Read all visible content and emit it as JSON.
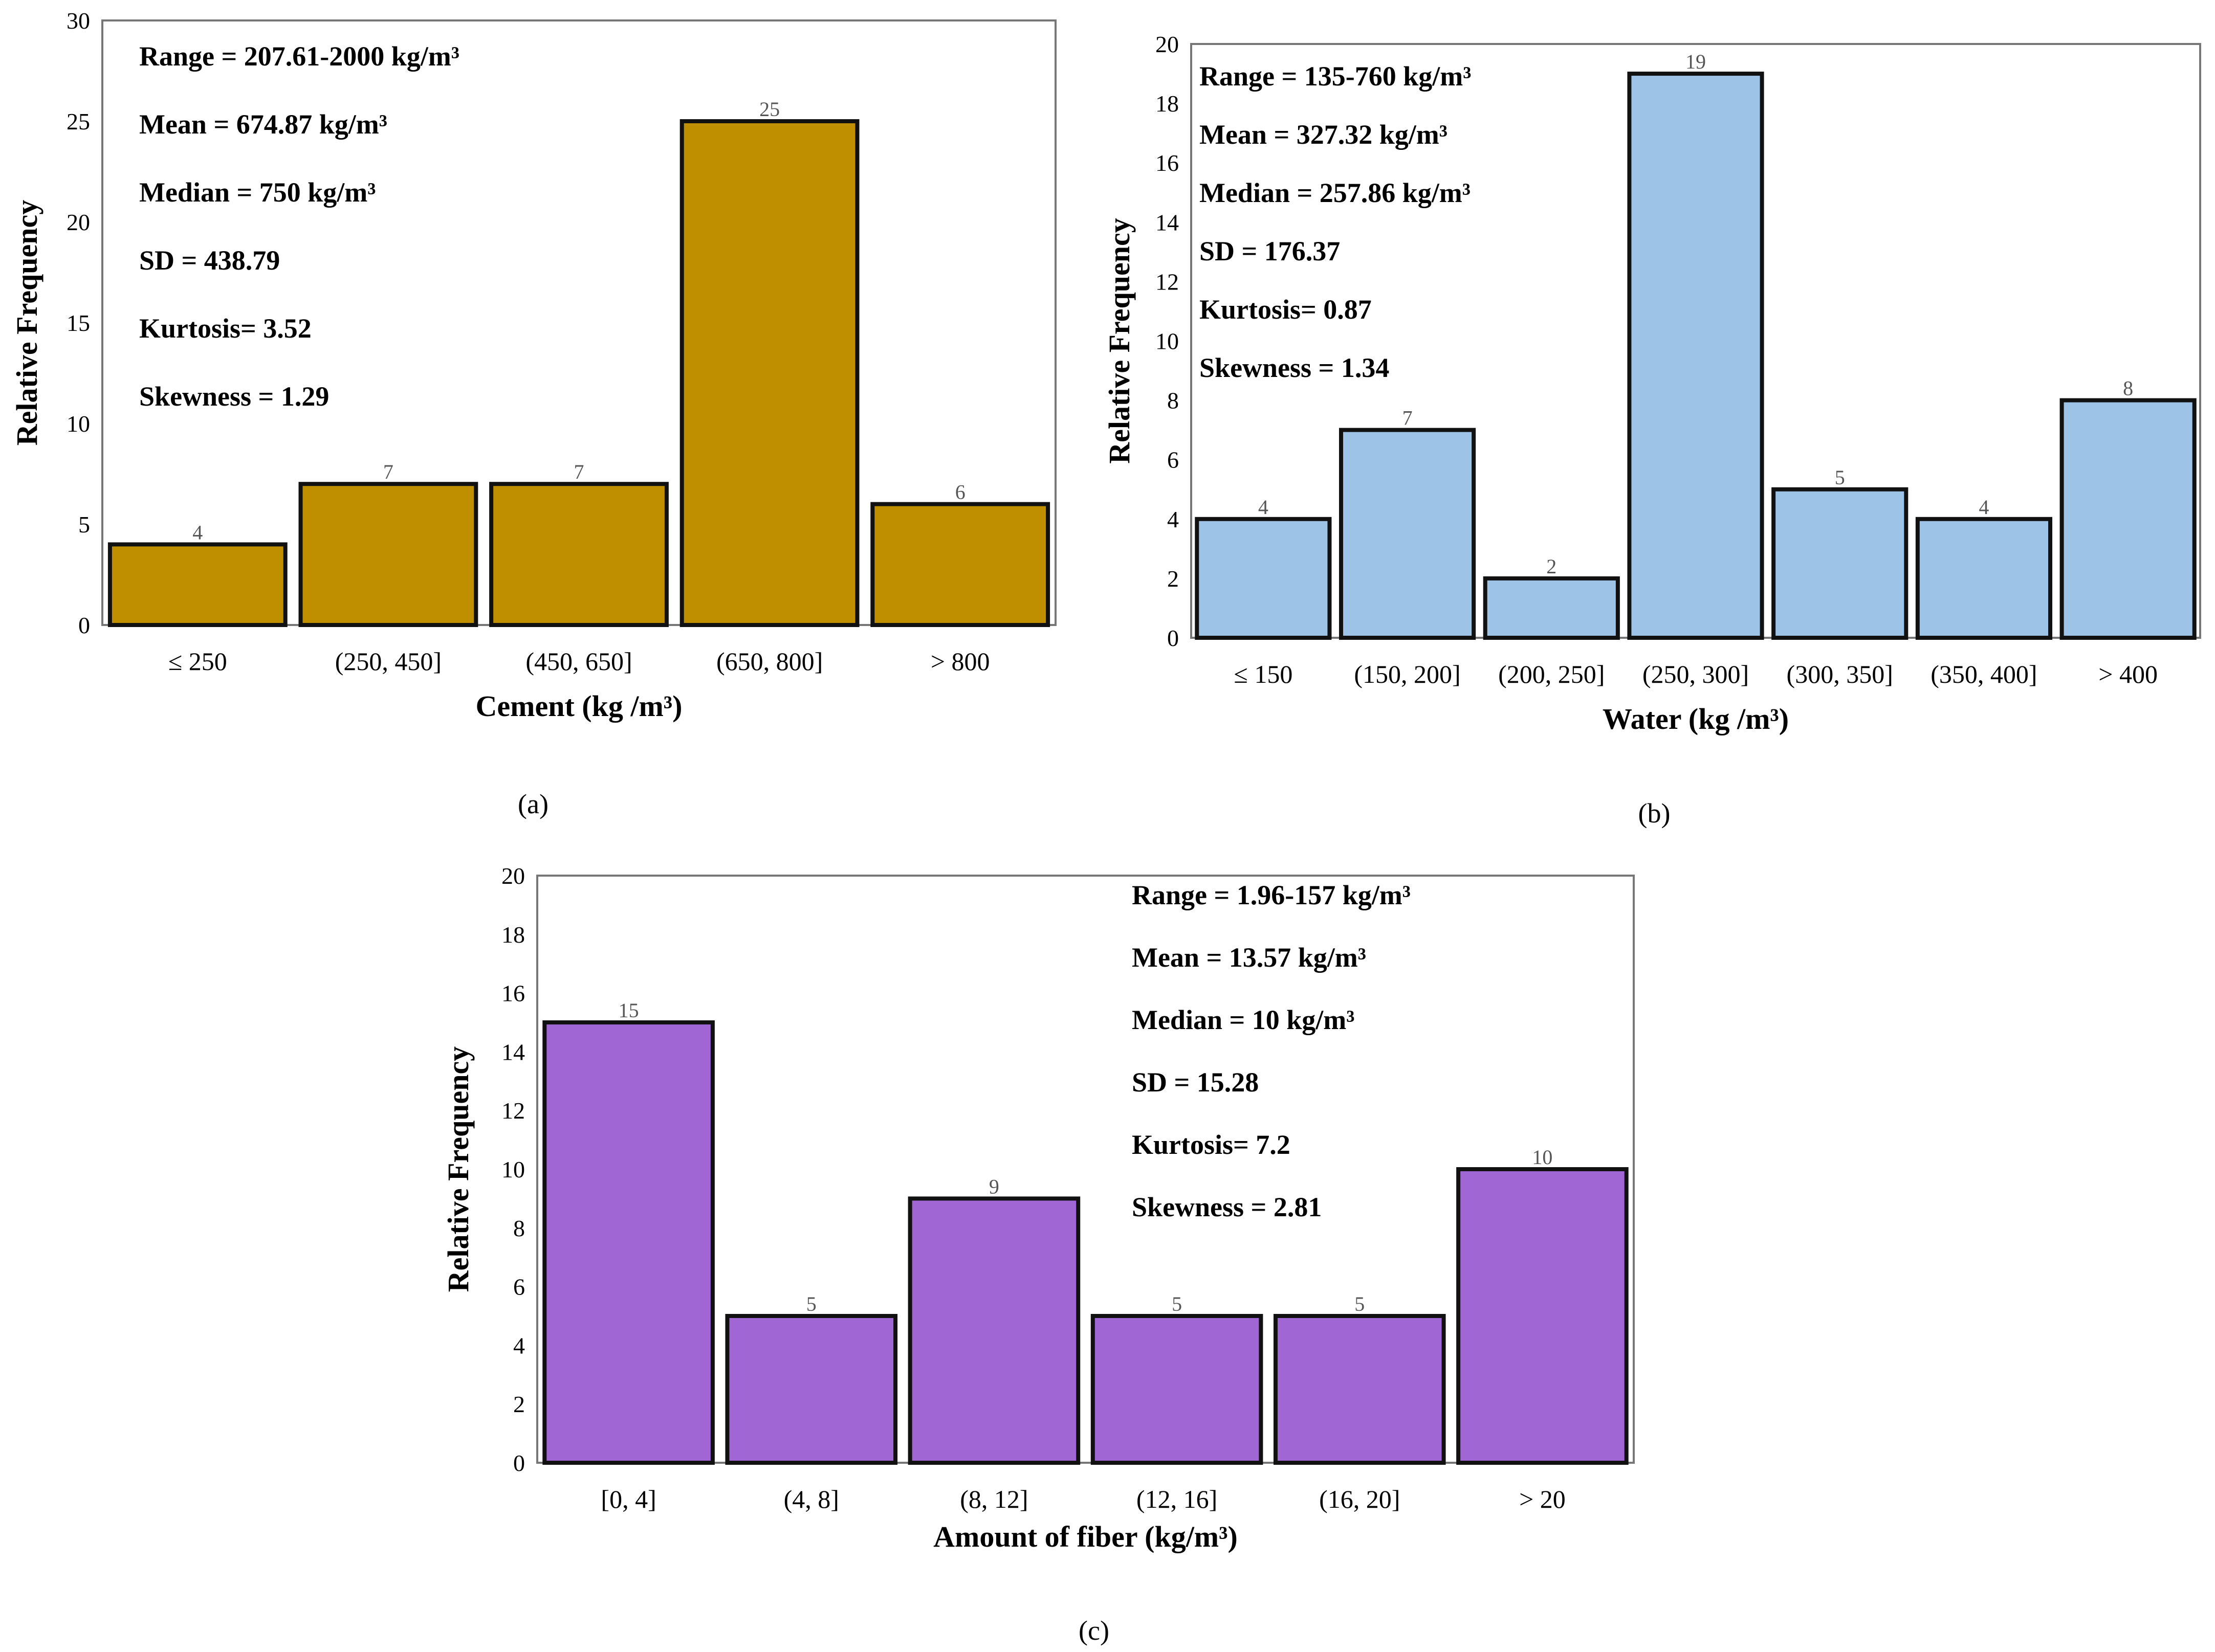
{
  "chart_data": [
    {
      "type": "bar",
      "panel_label": "(a)",
      "color": "#BF8F00",
      "categories": [
        "≤ 250",
        "(250, 450]",
        "(450, 650]",
        "(650, 800]",
        "> 800"
      ],
      "values": [
        4,
        7,
        7,
        25,
        6
      ],
      "xlabel": "Cement (kg /m³)",
      "ylabel": "Relative Frequency",
      "ylim": [
        0,
        30
      ],
      "yticks": [
        0,
        5,
        10,
        15,
        20,
        25,
        30
      ],
      "stats": [
        "Range = 207.61-2000 kg/m³",
        "Mean = 674.87 kg/m³",
        "Median = 750 kg/m³",
        "SD = 438.79",
        "Kurtosis=  3.52",
        "Skewness = 1.29"
      ]
    },
    {
      "type": "bar",
      "panel_label": "(b)",
      "color": "#9DC3E6",
      "categories": [
        "≤ 150",
        "(150, 200]",
        "(200, 250]",
        "(250, 300]",
        "(300, 350]",
        "(350, 400]",
        "> 400"
      ],
      "values": [
        4,
        7,
        2,
        19,
        5,
        4,
        8
      ],
      "xlabel": "Water (kg /m³)",
      "ylabel": "Relative Frequency",
      "ylim": [
        0,
        20
      ],
      "yticks": [
        0,
        2,
        4,
        6,
        8,
        10,
        12,
        14,
        16,
        18,
        20
      ],
      "stats": [
        "Range = 135-760 kg/m³",
        "Mean = 327.32 kg/m³",
        "Median = 257.86 kg/m³",
        "SD = 176.37",
        "Kurtosis=  0.87",
        "Skewness = 1.34"
      ]
    },
    {
      "type": "bar",
      "panel_label": "(c)",
      "color": "#A066D3",
      "categories": [
        "[0, 4]",
        "(4, 8]",
        "(8, 12]",
        "(12, 16]",
        "(16, 20]",
        "> 20"
      ],
      "values": [
        15,
        5,
        9,
        5,
        5,
        10
      ],
      "xlabel": "Amount of fiber (kg/m³)",
      "ylabel": "Relative Frequency",
      "ylim": [
        0,
        20
      ],
      "yticks": [
        0,
        2,
        4,
        6,
        8,
        10,
        12,
        14,
        16,
        18,
        20
      ],
      "stats": [
        "Range = 1.96-157 kg/m³",
        "Mean = 13.57 kg/m³",
        "Median = 10 kg/m³",
        "SD = 15.28",
        "Kurtosis=  7.2",
        "Skewness = 2.81"
      ]
    }
  ]
}
